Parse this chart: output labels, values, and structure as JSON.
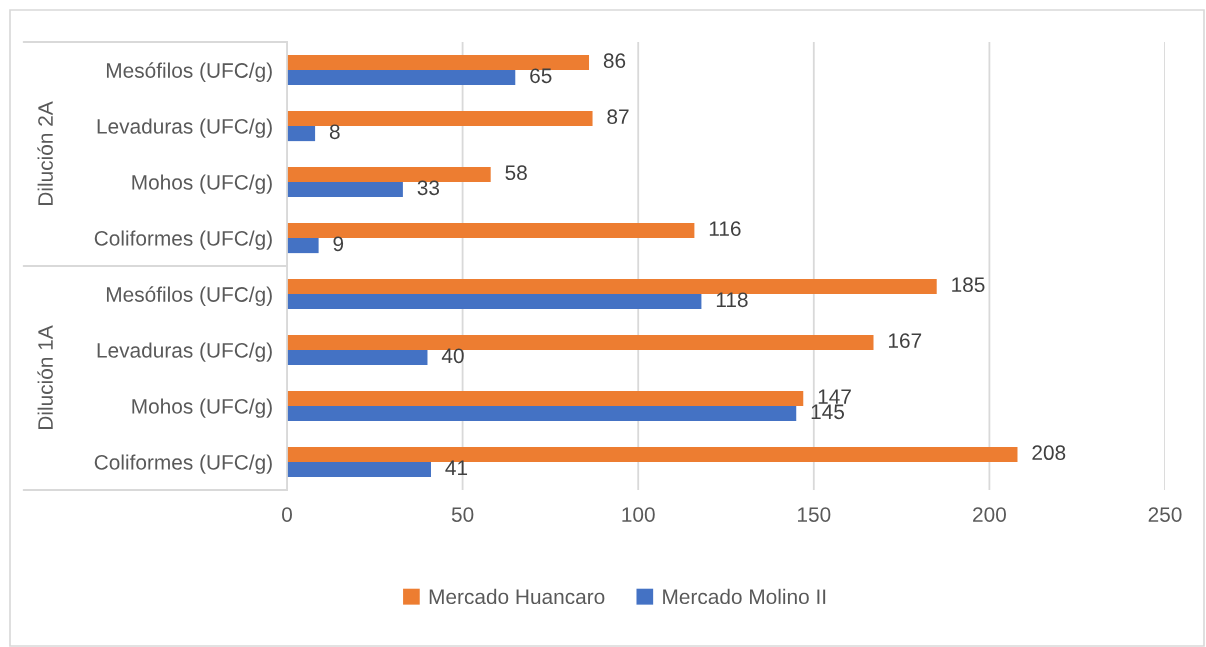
{
  "chart_data": {
    "type": "bar",
    "orientation": "horizontal",
    "categories": [
      "Mesófilos (UFC/g)",
      "Levaduras (UFC/g)",
      "Mohos (UFC/g)",
      "Coliformes (UFC/g)",
      "Mesófilos (UFC/g)",
      "Levaduras (UFC/g)",
      "Mohos (UFC/g)",
      "Coliformes (UFC/g)"
    ],
    "series": [
      {
        "name": "Mercado Huancaro",
        "color": "#ed7d31",
        "values": [
          86,
          87,
          58,
          116,
          185,
          167,
          147,
          208
        ]
      },
      {
        "name": "Mercado Molino II",
        "color": "#4472c4",
        "values": [
          65,
          8,
          33,
          9,
          118,
          40,
          145,
          41
        ]
      }
    ],
    "xlim": [
      0,
      250
    ],
    "xticks": [
      0,
      50,
      100,
      150,
      200,
      250
    ],
    "grid": "x",
    "legend": "bottom",
    "data_labels": true,
    "annotations": [
      "Dilución 2A",
      "Dilución 1A"
    ]
  }
}
